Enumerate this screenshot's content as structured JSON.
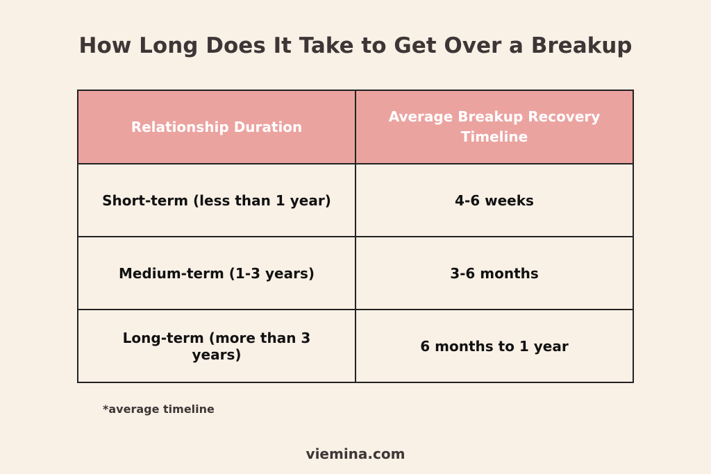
{
  "header": {
    "title": "How Long Does It Take to Get Over a Breakup"
  },
  "table": {
    "columns": [
      "Relationship Duration",
      "Average Breakup Recovery Timeline"
    ],
    "rows": [
      [
        "Short-term (less than 1 year)",
        "4-6 weeks"
      ],
      [
        "Medium-term (1-3 years)",
        "3-6 months"
      ],
      [
        "Long-term (more than 3 years)",
        "6 months to 1 year"
      ]
    ]
  },
  "note": "*average timeline",
  "footer": "viemina.com"
}
